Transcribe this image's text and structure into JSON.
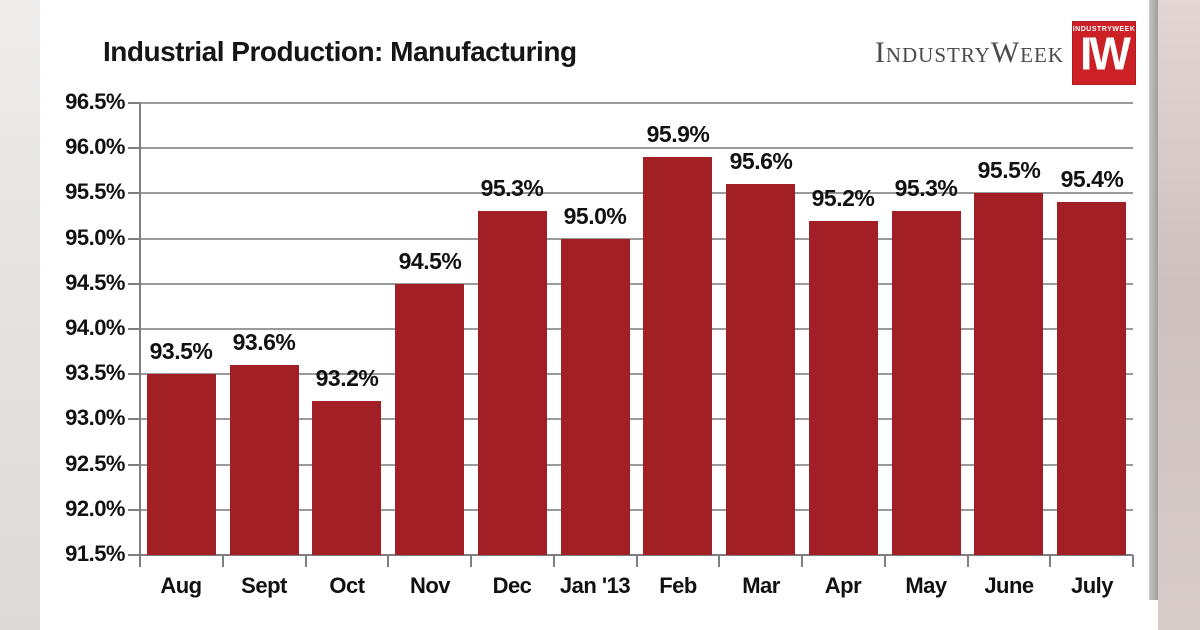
{
  "page": {
    "title": "Industrial Production: Manufacturing",
    "brand": {
      "logotype": "IndustryWeek",
      "logo_square_subtext": "INDUSTRYWEEK",
      "logo_square_text": "IW"
    }
  },
  "colors": {
    "bar": "#A22025",
    "logo_red": "#CB2026",
    "grid": "#9A9A9A",
    "axis": "#7F7F7F",
    "text": "#111111"
  },
  "chart_data": {
    "type": "bar",
    "title": "Industrial Production: Manufacturing",
    "categories": [
      "Aug",
      "Sept",
      "Oct",
      "Nov",
      "Dec",
      "Jan '13",
      "Feb",
      "Mar",
      "Apr",
      "May",
      "June",
      "July"
    ],
    "values": [
      93.5,
      93.6,
      93.2,
      94.5,
      95.3,
      95.0,
      95.9,
      95.6,
      95.2,
      95.3,
      95.5,
      95.4
    ],
    "data_labels": [
      "93.5%",
      "93.6%",
      "93.2%",
      "94.5%",
      "95.3%",
      "95.0%",
      "95.9%",
      "95.6%",
      "95.2%",
      "95.3%",
      "95.5%",
      "95.4%"
    ],
    "xlabel": "",
    "ylabel": "",
    "ylim": [
      91.5,
      96.5
    ],
    "ytick_step": 0.5,
    "ytick_labels": [
      "96.5%",
      "96.0%",
      "95.5%",
      "95.0%",
      "94.5%",
      "94.0%",
      "93.5%",
      "93.0%",
      "92.5%",
      "92.0%",
      "91.5%"
    ],
    "grid": true,
    "legend": false
  }
}
